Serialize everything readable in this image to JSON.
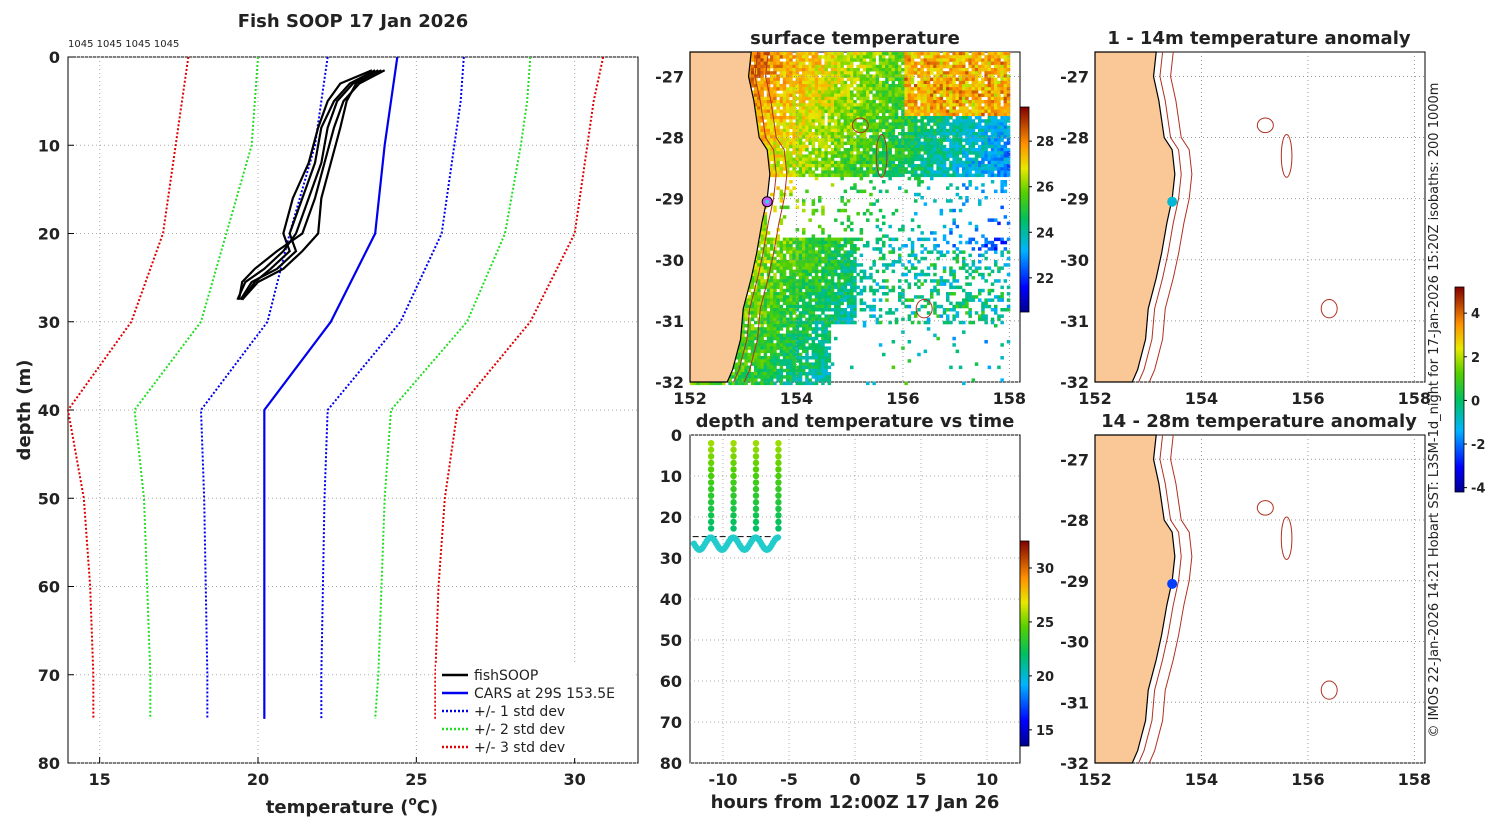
{
  "credit": "© IMOS 22-Jan-2026 14:21 Hobart SST: L3SM-1d_night for 17-Jan-2026 15:20Z isobaths: 200  1000m",
  "colors": {
    "land": "#f9c896",
    "black": "#000000",
    "blue": "#0000ee",
    "green": "#22dd22",
    "red": "#e00000",
    "cyan": "#22cccc",
    "isobath": "#b03020"
  },
  "chart_data": [
    {
      "id": "profile",
      "type": "line",
      "title": "Fish SOOP 17 Jan 2026",
      "deployments": "1045 1045 1045 1045",
      "xlabel": "temperature (°C)",
      "xlabel_main": "temperature (",
      "xlabel_sup": "o",
      "xlabel_end": "C)",
      "ylabel": "depth (m)",
      "xlim": [
        14,
        32
      ],
      "ylim": [
        0,
        80
      ],
      "x_ticks": [
        15,
        20,
        25,
        30
      ],
      "y_ticks": [
        0,
        10,
        20,
        30,
        40,
        50,
        60,
        70,
        80
      ],
      "legend": [
        "fishSOOP",
        "CARS at 29S 153.5E",
        "+/- 1 std dev",
        "+/- 2 std dev",
        "+/- 3 std dev"
      ],
      "cars_depth": [
        0,
        5,
        10,
        20,
        30,
        40,
        50,
        60,
        70,
        75
      ],
      "series": [
        {
          "name": "CARS mean",
          "temp": [
            24.4,
            24.2,
            24.0,
            23.7,
            22.3,
            20.2,
            20.2,
            20.2,
            20.2,
            20.2
          ]
        },
        {
          "name": "-1 std",
          "temp": [
            22.2,
            22.0,
            21.8,
            21.0,
            20.3,
            18.2,
            18.3,
            18.35,
            18.4,
            18.4
          ]
        },
        {
          "name": "+1 std",
          "temp": [
            26.5,
            26.4,
            26.2,
            25.8,
            24.5,
            22.2,
            22.1,
            22.05,
            22.0,
            22.0
          ]
        },
        {
          "name": "-2 std",
          "temp": [
            20.0,
            19.9,
            19.8,
            19.0,
            18.2,
            16.1,
            16.4,
            16.5,
            16.6,
            16.6
          ]
        },
        {
          "name": "+2 std",
          "temp": [
            28.6,
            28.5,
            28.3,
            27.8,
            26.6,
            24.2,
            24.0,
            23.9,
            23.8,
            23.7
          ]
        },
        {
          "name": "-3 std",
          "temp": [
            17.8,
            17.6,
            17.4,
            17.0,
            16.0,
            14.0,
            14.5,
            14.7,
            14.8,
            14.8
          ]
        },
        {
          "name": "+3 std",
          "temp": [
            30.9,
            30.6,
            30.4,
            30.0,
            28.6,
            26.3,
            25.9,
            25.7,
            25.6,
            25.6
          ]
        }
      ],
      "fishsoop_profiles": [
        {
          "depth": [
            1.5,
            3,
            5,
            8,
            12,
            16,
            20,
            22,
            24,
            25.5,
            27.5
          ],
          "temp": [
            24.0,
            23.2,
            22.7,
            22.4,
            22.1,
            21.8,
            21.4,
            20.6,
            19.9,
            19.5,
            19.4
          ]
        },
        {
          "depth": [
            1.5,
            3,
            5,
            8,
            12,
            16,
            20,
            22,
            24,
            25.5,
            27.5
          ],
          "temp": [
            23.9,
            23.0,
            22.5,
            22.2,
            22.0,
            21.6,
            21.2,
            20.8,
            20.2,
            19.6,
            19.35
          ]
        },
        {
          "depth": [
            1.5,
            3,
            5,
            8,
            12,
            16,
            20,
            22,
            24,
            25.5,
            27.5
          ],
          "temp": [
            23.7,
            22.9,
            22.4,
            22.0,
            21.8,
            21.4,
            21.0,
            21.2,
            20.6,
            19.8,
            19.45
          ]
        },
        {
          "depth": [
            1.5,
            3,
            5,
            8,
            12,
            16,
            20,
            22,
            24,
            25.5,
            27.5
          ],
          "temp": [
            23.6,
            22.6,
            22.2,
            21.9,
            21.6,
            21.1,
            20.8,
            21.0,
            20.4,
            19.9,
            19.5
          ]
        },
        {
          "depth": [
            1.5,
            3,
            5,
            8,
            12,
            16,
            20,
            22,
            24,
            25.5,
            27.5
          ],
          "temp": [
            23.8,
            23.1,
            22.8,
            22.6,
            22.3,
            22.0,
            21.9,
            21.4,
            20.8,
            20.0,
            19.5
          ]
        }
      ]
    },
    {
      "id": "sst_map",
      "type": "heatmap",
      "title": "surface temperature",
      "xlim": [
        152,
        158.2
      ],
      "ylim": [
        -32,
        -26.6
      ],
      "x_ticks": [
        152,
        154,
        156,
        158
      ],
      "y_ticks": [
        -27,
        -28,
        -29,
        -30,
        -31,
        -32
      ],
      "colorbar": {
        "min": 20.5,
        "max": 29.5,
        "ticks": [
          22,
          24,
          26,
          28
        ]
      },
      "marker": {
        "lon": 153.45,
        "lat": -29.05
      }
    },
    {
      "id": "depth_time",
      "type": "scatter",
      "title": "depth and temperature vs time",
      "xlabel": "hours from 12:00Z 17 Jan 26",
      "xlim": [
        -12.5,
        12.5
      ],
      "ylim": [
        0,
        80
      ],
      "x_ticks": [
        -10,
        -5,
        0,
        5,
        10
      ],
      "y_ticks": [
        0,
        10,
        20,
        30,
        40,
        50,
        60,
        70,
        80
      ],
      "cast_hours": [
        -10.9,
        -9.2,
        -7.5,
        -5.8
      ],
      "colorbar": {
        "min": 13.5,
        "max": 32.5,
        "ticks": [
          15,
          20,
          25,
          30
        ]
      }
    },
    {
      "id": "anom_1_14",
      "type": "heatmap",
      "title": "1 - 14m temperature anomaly",
      "xlim": [
        152,
        158.2
      ],
      "ylim": [
        -32,
        -26.6
      ],
      "x_ticks": [
        152,
        154,
        156,
        158
      ],
      "y_ticks": [
        -27,
        -28,
        -29,
        -30,
        -31,
        -32
      ],
      "point": {
        "lon": 153.45,
        "lat": -29.05,
        "anomaly": -1.0
      }
    },
    {
      "id": "anom_14_28",
      "type": "heatmap",
      "title": "14 - 28m temperature anomaly",
      "xlim": [
        152,
        158.2
      ],
      "ylim": [
        -32,
        -26.6
      ],
      "x_ticks": [
        152,
        154,
        156,
        158
      ],
      "y_ticks": [
        -27,
        -28,
        -29,
        -30,
        -31,
        -32
      ],
      "point": {
        "lon": 153.45,
        "lat": -29.05,
        "anomaly": -2.5
      },
      "colorbar": {
        "min": -4.2,
        "max": 5.2,
        "ticks": [
          -4,
          -2,
          0,
          2,
          4
        ]
      }
    }
  ]
}
